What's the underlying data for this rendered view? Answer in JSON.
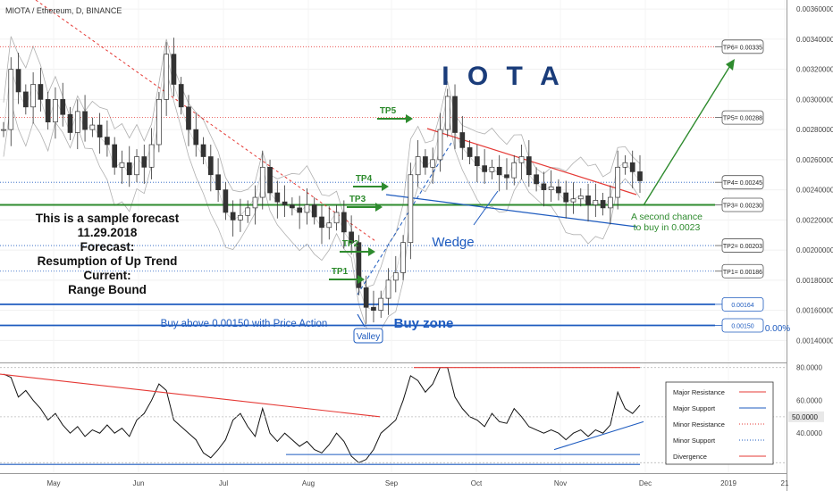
{
  "header": {
    "symbol": "MIOTA / Ethereum, D, BINANCE"
  },
  "title": "I O T A",
  "forecast_text": [
    "This is a sample forecast",
    "11.29.2018",
    "Forecast:",
    "Resumption of Up Trend",
    "Current:",
    "Range Bound"
  ],
  "annotations": {
    "wedge": "Wedge",
    "buy_zone": "Buy zone",
    "buy_above": "Buy above 0.00150 with Price Action",
    "valley": "Valley",
    "second_chance_1": "A second chance",
    "second_chance_2": "to buy in 0.0023",
    "pct": "0.00%",
    "tp_arrows": [
      "TP1",
      "TP2",
      "TP3",
      "TP4",
      "TP5"
    ]
  },
  "tp_boxes": [
    {
      "label": "TP6= 0.00335",
      "value": 0.00335
    },
    {
      "label": "TP5= 0.00288",
      "value": 0.00288
    },
    {
      "label": "TP4= 0.00245",
      "value": 0.00245
    },
    {
      "label": "TP3= 0.00230",
      "value": 0.0023
    },
    {
      "label": "TP2= 0.00203",
      "value": 0.00203
    },
    {
      "label": "TP1= 0.00186",
      "value": 0.00186
    },
    {
      "label": "0.00164",
      "value": 0.00164
    },
    {
      "label": "0.00150",
      "value": 0.0015
    }
  ],
  "price_axis": {
    "ticks": [
      "0.00360000",
      "0.00340000",
      "0.00320000",
      "0.00300000",
      "0.00280000",
      "0.00260000",
      "0.00240000",
      "0.00220000",
      "0.00200000",
      "0.00180000",
      "0.00160000",
      "0.00140000"
    ],
    "range": [
      0.00126,
      0.00366
    ]
  },
  "osc_axis": {
    "ticks": [
      "80.0000",
      "60.0000",
      "40.0000"
    ],
    "current": "50.0000",
    "range": [
      20,
      82
    ]
  },
  "time_axis": {
    "labels": [
      "May",
      "Jun",
      "Jul",
      "Aug",
      "Sep",
      "Oct",
      "Nov",
      "Dec",
      "2019",
      "21"
    ]
  },
  "legend": [
    {
      "label": "Major Resistance",
      "color": "#e53935",
      "style": "solid"
    },
    {
      "label": "Major Support",
      "color": "#1e5bbf",
      "style": "solid"
    },
    {
      "label": "Minor Resistance",
      "color": "#e53935",
      "style": "dotted"
    },
    {
      "label": "Minor Support",
      "color": "#1e5bbf",
      "style": "dotted"
    },
    {
      "label": "Divergence",
      "color": "#e53935",
      "style": "solid"
    }
  ],
  "colors": {
    "up": "#2e2e2e",
    "down": "#2e2e2e",
    "green": "#2e8b2e",
    "blue": "#1e5bbf",
    "red": "#e53935",
    "title": "#1a3c7a",
    "band": "#b0b0b0"
  },
  "chart_data": {
    "type": "candlestick",
    "x_start": "2018-04-18",
    "price_path": [
      0.0028,
      0.0032,
      0.00305,
      0.00295,
      0.0031,
      0.003,
      0.00285,
      0.003,
      0.0029,
      0.00278,
      0.00292,
      0.0028,
      0.00283,
      0.00275,
      0.0027,
      0.00255,
      0.00258,
      0.0025,
      0.00262,
      0.00255,
      0.0027,
      0.003,
      0.0033,
      0.0031,
      0.00295,
      0.0028,
      0.0027,
      0.00262,
      0.0025,
      0.0024,
      0.00225,
      0.0022,
      0.00223,
      0.00228,
      0.00235,
      0.00255,
      0.00238,
      0.00232,
      0.0023,
      0.00228,
      0.00225,
      0.0023,
      0.00222,
      0.00215,
      0.00218,
      0.00225,
      0.00212,
      0.00205,
      0.00175,
      0.00162,
      0.0016,
      0.00168,
      0.0018,
      0.00185,
      0.00205,
      0.0025,
      0.00262,
      0.00255,
      0.0026,
      0.0028,
      0.00302,
      0.00278,
      0.00268,
      0.00262,
      0.00256,
      0.00252,
      0.00255,
      0.0025,
      0.00248,
      0.00258,
      0.00262,
      0.0025,
      0.00244,
      0.0024,
      0.00242,
      0.00238,
      0.00232,
      0.00234,
      0.00236,
      0.0023,
      0.00233,
      0.00228,
      0.00235,
      0.00255,
      0.00258,
      0.00252,
      0.00246
    ],
    "oscillator": [
      76,
      74,
      62,
      66,
      60,
      55,
      48,
      52,
      45,
      40,
      44,
      38,
      42,
      40,
      45,
      40,
      43,
      38,
      48,
      52,
      60,
      70,
      66,
      48,
      44,
      40,
      36,
      28,
      25,
      30,
      36,
      48,
      52,
      44,
      38,
      55,
      40,
      35,
      40,
      36,
      32,
      35,
      30,
      28,
      33,
      40,
      35,
      26,
      22,
      24,
      30,
      40,
      44,
      48,
      60,
      75,
      72,
      65,
      70,
      80,
      80,
      62,
      55,
      50,
      48,
      44,
      52,
      47,
      46,
      55,
      50,
      44,
      42,
      40,
      42,
      40,
      36,
      40,
      42,
      38,
      42,
      40,
      45,
      65,
      55,
      52,
      57
    ],
    "horizontal_levels": [
      0.00335,
      0.00288,
      0.00245,
      0.0023,
      0.00203,
      0.00186,
      0.00164,
      0.0015
    ],
    "xlabel": "",
    "ylabel": ""
  }
}
